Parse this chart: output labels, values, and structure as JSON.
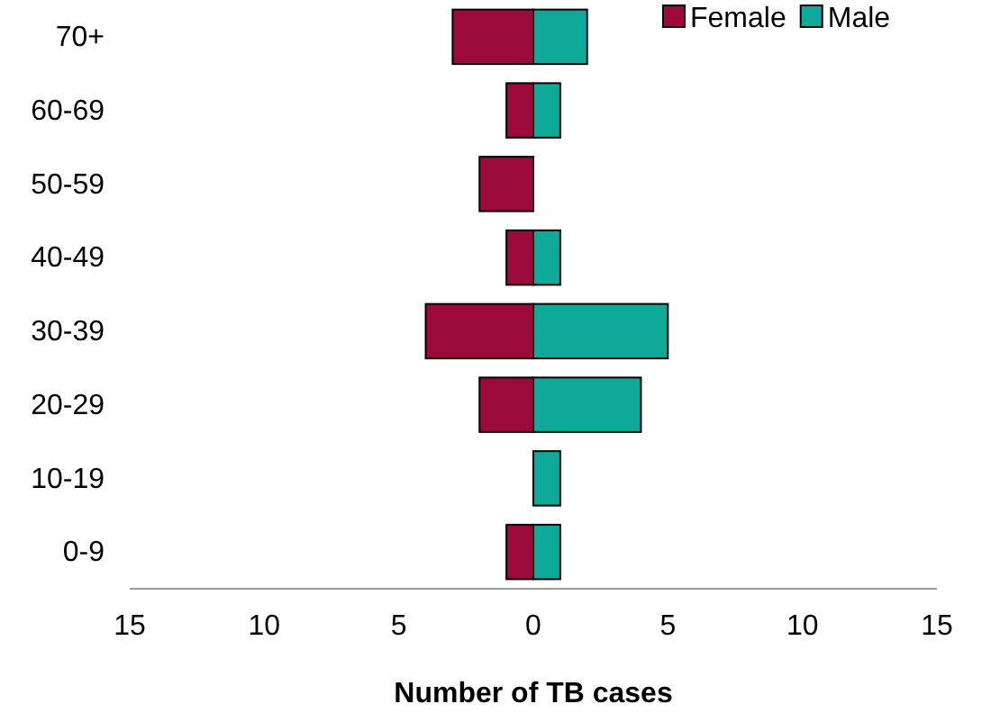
{
  "chart_data": {
    "type": "bar",
    "orientation": "horizontal",
    "stacked": true,
    "xlabel": "Number of TB cases",
    "categories": [
      "70+",
      "60-69",
      "50-59",
      "40-49",
      "30-39",
      "20-29",
      "10-19",
      "0-9"
    ],
    "series": [
      {
        "name": "Female",
        "color": "#9b0a3a",
        "values": [
          -3,
          -1,
          -2,
          -1,
          -4,
          -2,
          0,
          -1
        ]
      },
      {
        "name": "Male",
        "color": "#0fa99a",
        "values": [
          2,
          1,
          0,
          1,
          5,
          4,
          1,
          1
        ]
      }
    ],
    "xlim": [
      -15,
      15
    ],
    "xticks": [
      {
        "value": -15,
        "label": "15"
      },
      {
        "value": -10,
        "label": "10"
      },
      {
        "value": -5,
        "label": "5"
      },
      0,
      5,
      10,
      15
    ],
    "legend": "top right",
    "grid": false
  }
}
